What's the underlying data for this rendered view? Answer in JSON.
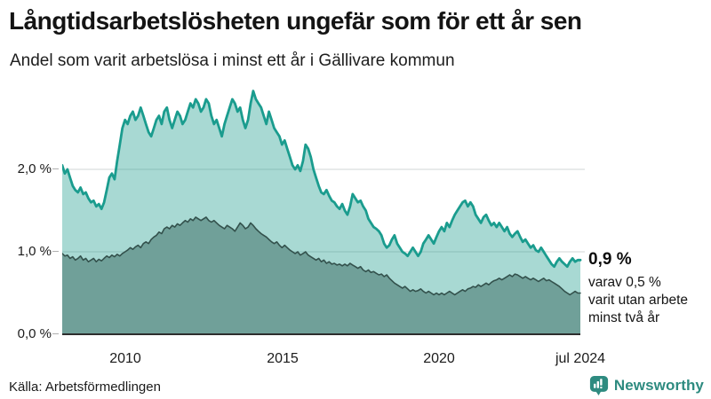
{
  "header": {
    "title": "Långtidsarbetslösheten ungefär som för ett år sen",
    "subtitle": "Andel som varit arbetslösa i minst ett år i Gällivare kommun"
  },
  "chart_data": {
    "type": "area",
    "title": "Långtidsarbetslösheten ungefär som för ett år sen",
    "subtitle": "Andel som varit arbetslösa i minst ett år i Gällivare kommun",
    "unit": "%",
    "x_start": "2008-01",
    "x_end": "2024-07",
    "x_frequency": "monthly",
    "ylim": [
      0,
      3.03
    ],
    "grid": true,
    "y_axis": {
      "ticks": [
        "2,0 %",
        "1,0 %",
        "0,0 %"
      ],
      "tick_values": [
        2.0,
        1.0,
        0.0
      ]
    },
    "x_axis": {
      "ticks": [
        "2010",
        "2015",
        "2020",
        "jul 2024"
      ],
      "tick_indices": [
        24,
        84,
        144,
        198
      ]
    },
    "style": {
      "grid_color": "#e0e3e4",
      "axis_color": "#2d2d2d",
      "background": "#ffffff"
    },
    "series": [
      {
        "name": "Arbetslösa minst ett år",
        "line_color": "#1a9c8e",
        "fill_color": "rgba(26,156,140,0.38)",
        "line_width": 2.8,
        "end_value": 0.9,
        "values": [
          2.05,
          1.95,
          2.0,
          1.9,
          1.8,
          1.75,
          1.72,
          1.78,
          1.7,
          1.72,
          1.65,
          1.6,
          1.62,
          1.55,
          1.58,
          1.52,
          1.6,
          1.75,
          1.9,
          1.95,
          1.88,
          2.1,
          2.3,
          2.5,
          2.6,
          2.55,
          2.65,
          2.7,
          2.6,
          2.65,
          2.75,
          2.65,
          2.55,
          2.45,
          2.4,
          2.5,
          2.6,
          2.65,
          2.55,
          2.7,
          2.75,
          2.6,
          2.5,
          2.6,
          2.7,
          2.65,
          2.55,
          2.6,
          2.7,
          2.8,
          2.75,
          2.85,
          2.8,
          2.7,
          2.75,
          2.85,
          2.8,
          2.65,
          2.55,
          2.6,
          2.5,
          2.4,
          2.55,
          2.65,
          2.75,
          2.85,
          2.8,
          2.7,
          2.75,
          2.6,
          2.5,
          2.6,
          2.8,
          2.95,
          2.85,
          2.8,
          2.75,
          2.65,
          2.55,
          2.7,
          2.6,
          2.5,
          2.45,
          2.4,
          2.3,
          2.35,
          2.25,
          2.15,
          2.05,
          2.0,
          2.05,
          1.98,
          2.1,
          2.3,
          2.25,
          2.15,
          2.0,
          1.9,
          1.8,
          1.72,
          1.7,
          1.75,
          1.68,
          1.62,
          1.6,
          1.55,
          1.52,
          1.58,
          1.5,
          1.45,
          1.55,
          1.7,
          1.65,
          1.6,
          1.62,
          1.55,
          1.5,
          1.4,
          1.35,
          1.3,
          1.28,
          1.25,
          1.2,
          1.1,
          1.05,
          1.08,
          1.15,
          1.2,
          1.1,
          1.05,
          1.0,
          0.98,
          0.95,
          1.0,
          1.05,
          1.0,
          0.95,
          1.0,
          1.1,
          1.15,
          1.2,
          1.15,
          1.1,
          1.18,
          1.25,
          1.3,
          1.25,
          1.35,
          1.3,
          1.38,
          1.45,
          1.5,
          1.55,
          1.6,
          1.62,
          1.55,
          1.6,
          1.55,
          1.45,
          1.4,
          1.35,
          1.42,
          1.45,
          1.38,
          1.32,
          1.35,
          1.3,
          1.35,
          1.3,
          1.25,
          1.3,
          1.22,
          1.18,
          1.22,
          1.25,
          1.18,
          1.12,
          1.15,
          1.1,
          1.05,
          1.08,
          1.02,
          1.0,
          1.05,
          1.0,
          0.95,
          0.9,
          0.85,
          0.82,
          0.88,
          0.92,
          0.88,
          0.85,
          0.82,
          0.88,
          0.92,
          0.88,
          0.9,
          0.9
        ]
      },
      {
        "name": "Arbetslösa minst två år",
        "line_color": "#33514c",
        "fill_color": "#70a099",
        "line_width": 1.6,
        "end_value": 0.5,
        "values": [
          0.98,
          0.95,
          0.96,
          0.92,
          0.94,
          0.9,
          0.92,
          0.95,
          0.9,
          0.92,
          0.88,
          0.9,
          0.92,
          0.88,
          0.91,
          0.89,
          0.92,
          0.95,
          0.93,
          0.96,
          0.94,
          0.97,
          0.95,
          0.98,
          1.0,
          1.02,
          1.05,
          1.03,
          1.06,
          1.08,
          1.05,
          1.1,
          1.12,
          1.1,
          1.15,
          1.18,
          1.2,
          1.24,
          1.22,
          1.28,
          1.3,
          1.28,
          1.32,
          1.3,
          1.34,
          1.32,
          1.35,
          1.38,
          1.36,
          1.4,
          1.38,
          1.42,
          1.4,
          1.38,
          1.4,
          1.42,
          1.38,
          1.36,
          1.38,
          1.35,
          1.32,
          1.3,
          1.28,
          1.32,
          1.3,
          1.28,
          1.25,
          1.3,
          1.35,
          1.32,
          1.28,
          1.3,
          1.35,
          1.32,
          1.28,
          1.25,
          1.22,
          1.2,
          1.18,
          1.15,
          1.12,
          1.1,
          1.12,
          1.08,
          1.05,
          1.08,
          1.05,
          1.02,
          1.0,
          0.98,
          1.0,
          0.96,
          0.98,
          1.0,
          0.96,
          0.94,
          0.92,
          0.9,
          0.92,
          0.88,
          0.9,
          0.86,
          0.88,
          0.85,
          0.86,
          0.84,
          0.85,
          0.83,
          0.85,
          0.83,
          0.86,
          0.84,
          0.82,
          0.8,
          0.82,
          0.78,
          0.76,
          0.78,
          0.75,
          0.76,
          0.74,
          0.72,
          0.73,
          0.7,
          0.72,
          0.68,
          0.65,
          0.62,
          0.6,
          0.58,
          0.56,
          0.58,
          0.55,
          0.52,
          0.54,
          0.52,
          0.53,
          0.55,
          0.52,
          0.5,
          0.52,
          0.5,
          0.48,
          0.5,
          0.48,
          0.5,
          0.48,
          0.5,
          0.52,
          0.5,
          0.48,
          0.5,
          0.52,
          0.54,
          0.52,
          0.55,
          0.56,
          0.58,
          0.57,
          0.6,
          0.58,
          0.6,
          0.62,
          0.6,
          0.63,
          0.65,
          0.66,
          0.68,
          0.66,
          0.68,
          0.7,
          0.72,
          0.7,
          0.73,
          0.72,
          0.7,
          0.68,
          0.7,
          0.68,
          0.66,
          0.68,
          0.66,
          0.64,
          0.66,
          0.68,
          0.65,
          0.66,
          0.64,
          0.62,
          0.6,
          0.58,
          0.55,
          0.52,
          0.5,
          0.48,
          0.5,
          0.52,
          0.5,
          0.5
        ]
      }
    ],
    "annotations": {
      "value_label": "0,9 %",
      "note_lines": [
        "varav 0,5 %",
        "varit utan arbete",
        "minst två år"
      ]
    }
  },
  "footer": {
    "source": "Källa: Arbetsförmedlingen",
    "brand": "Newsworthy",
    "brand_color": "#2e8b80"
  }
}
